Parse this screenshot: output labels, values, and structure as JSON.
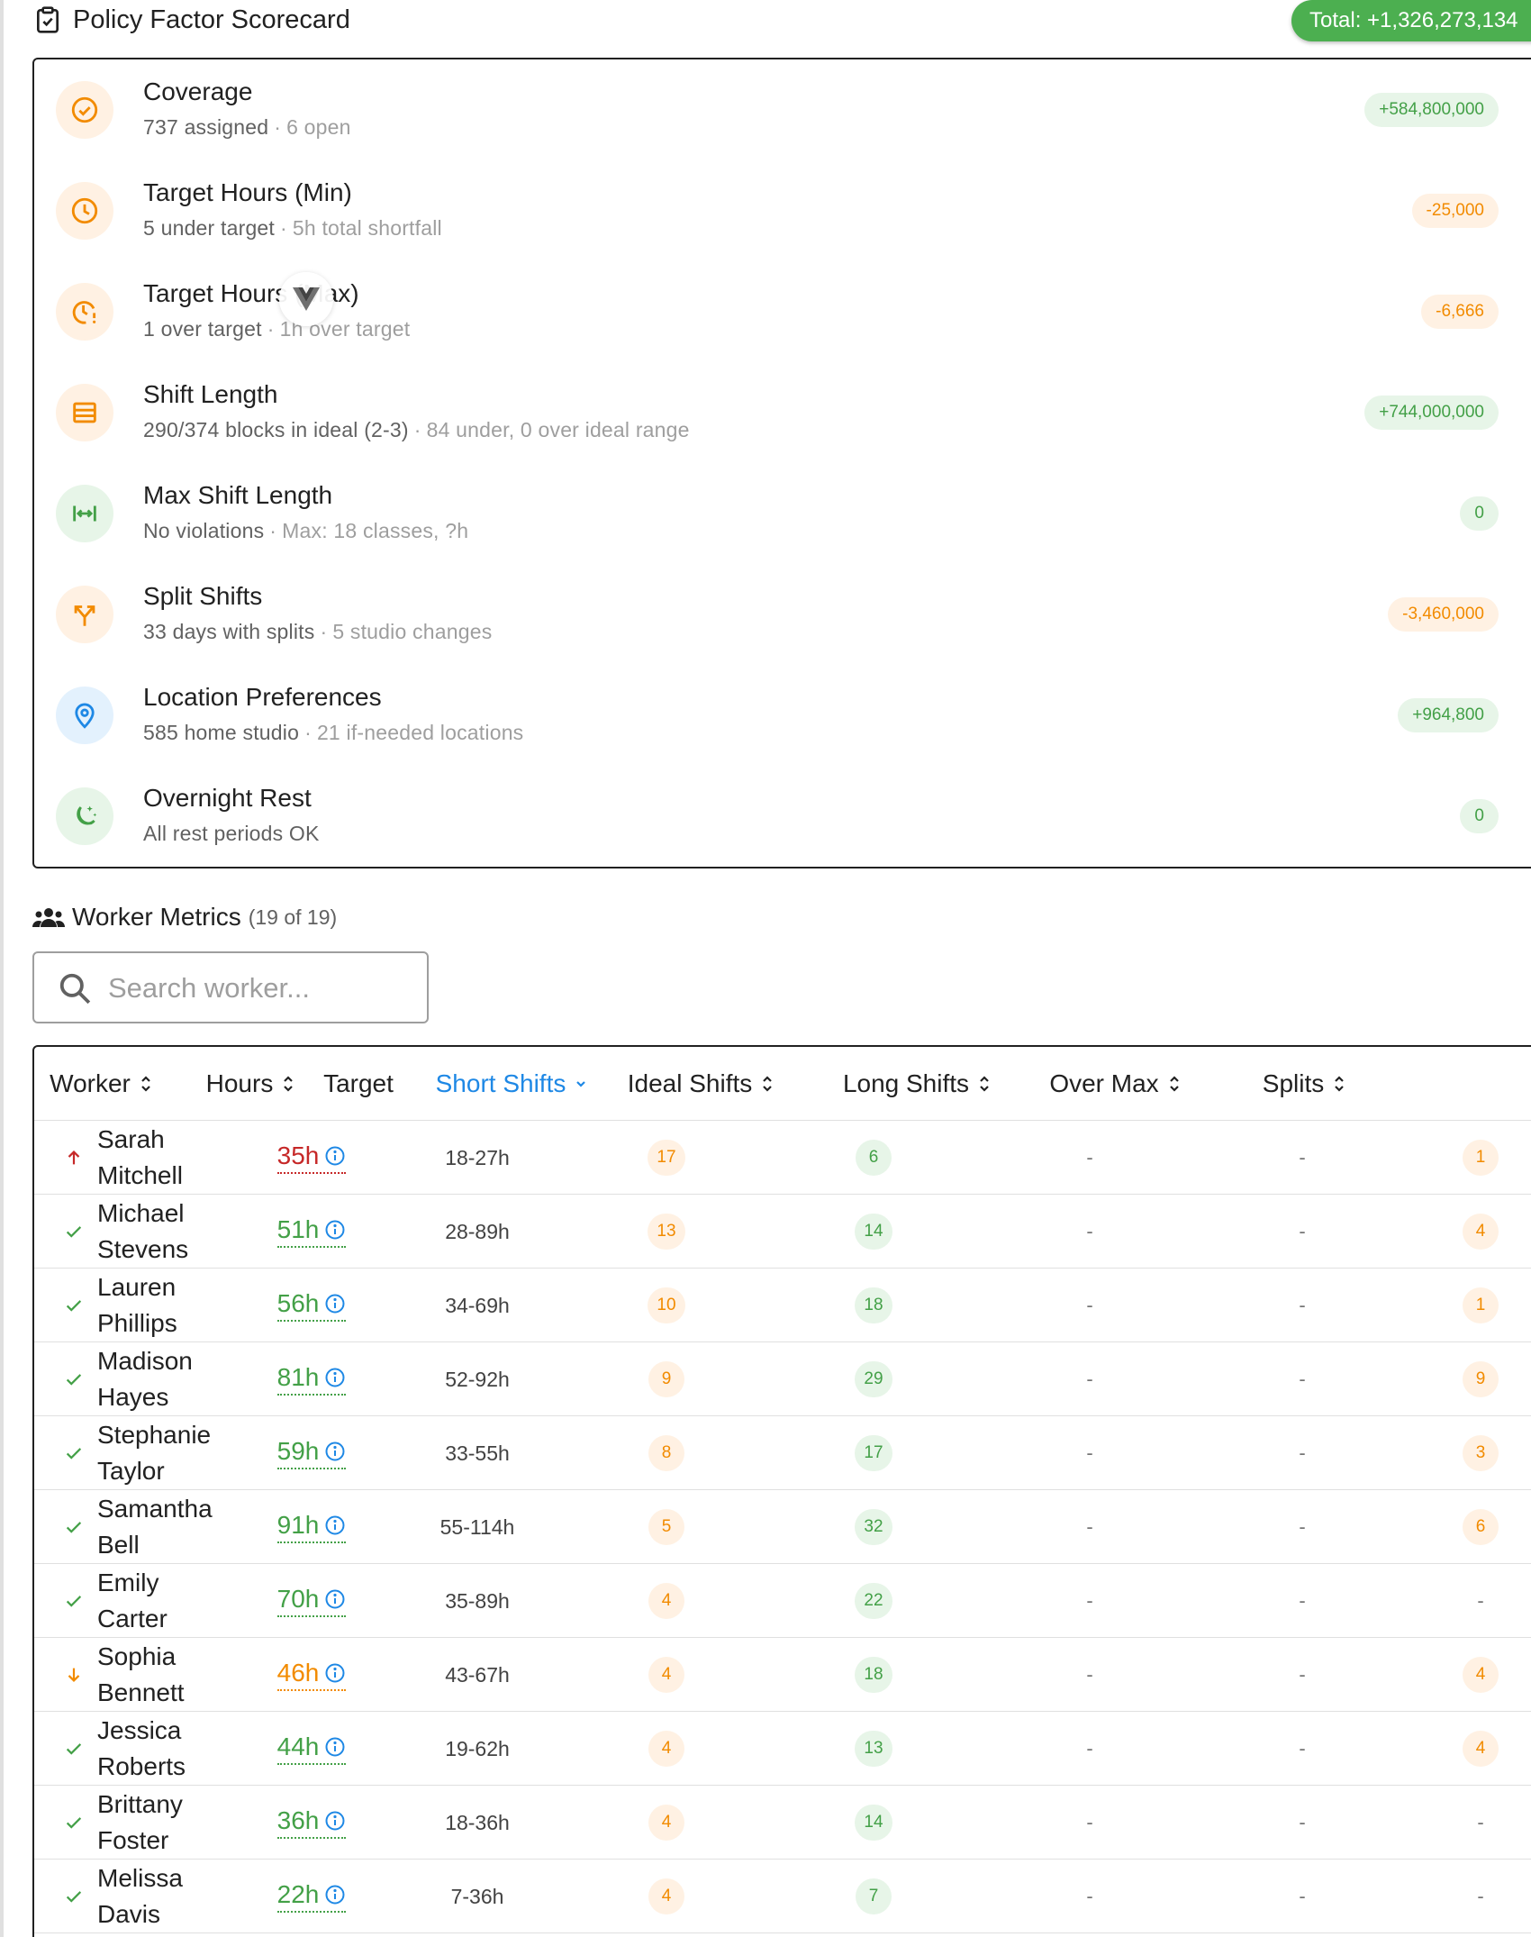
{
  "scorecard": {
    "title": "Policy Factor Scorecard",
    "total": "Total: +1,326,273,134",
    "factors": [
      {
        "name": "Coverage",
        "detail": "737 assigned",
        "extra": "6 open",
        "score": "+584,800,000",
        "tone": "pos",
        "icon": "check-circle-icon"
      },
      {
        "name": "Target Hours (Min)",
        "detail": "5 under target",
        "extra": "5h total shortfall",
        "score": "-25,000",
        "tone": "neg",
        "icon": "clock-icon"
      },
      {
        "name": "Target Hours (Max)",
        "detail": "1 over target",
        "extra": "1h over target",
        "score": "-6,666",
        "tone": "neg",
        "icon": "clock-alert-icon"
      },
      {
        "name": "Shift Length",
        "detail": "290/374 blocks in ideal (2-3)",
        "extra": "84 under, 0 over ideal range",
        "score": "+744,000,000",
        "tone": "pos",
        "icon": "list-icon"
      },
      {
        "name": "Max Shift Length",
        "detail": "No violations",
        "extra": "Max: 18 classes, ?h",
        "score": "0",
        "tone": "zero",
        "icon": "horizontal-arrows-icon"
      },
      {
        "name": "Split Shifts",
        "detail": "33 days with splits",
        "extra": "5 studio changes",
        "score": "-3,460,000",
        "tone": "neg",
        "icon": "split-icon"
      },
      {
        "name": "Location Preferences",
        "detail": "585 home studio",
        "extra": "21 if-needed locations",
        "score": "+964,800",
        "tone": "pos",
        "icon": "map-pin-icon"
      },
      {
        "name": "Overnight Rest",
        "detail": "All rest periods OK",
        "extra": "",
        "score": "0",
        "tone": "zero",
        "icon": "moon-icon"
      }
    ]
  },
  "workers": {
    "title": "Worker Metrics",
    "count": "(19 of 19)",
    "search_placeholder": "Search worker...",
    "columns": [
      "Worker",
      "Hours",
      "Target",
      "Short Shifts",
      "Ideal Shifts",
      "Long Shifts",
      "Over Max",
      "Splits"
    ],
    "rows": [
      {
        "status": "up",
        "name": "Sarah Mitchell",
        "hours": "35h",
        "hours_tone": "red",
        "target": "18-27h",
        "short": "17",
        "ideal": "6",
        "long": "-",
        "over": "-",
        "splits": "1"
      },
      {
        "status": "ok",
        "name": "Michael Stevens",
        "hours": "51h",
        "hours_tone": "green",
        "target": "28-89h",
        "short": "13",
        "ideal": "14",
        "long": "-",
        "over": "-",
        "splits": "4"
      },
      {
        "status": "ok",
        "name": "Lauren Phillips",
        "hours": "56h",
        "hours_tone": "green",
        "target": "34-69h",
        "short": "10",
        "ideal": "18",
        "long": "-",
        "over": "-",
        "splits": "1"
      },
      {
        "status": "ok",
        "name": "Madison Hayes",
        "hours": "81h",
        "hours_tone": "green",
        "target": "52-92h",
        "short": "9",
        "ideal": "29",
        "long": "-",
        "over": "-",
        "splits": "9"
      },
      {
        "status": "ok",
        "name": "Stephanie Taylor",
        "hours": "59h",
        "hours_tone": "green",
        "target": "33-55h",
        "short": "8",
        "ideal": "17",
        "long": "-",
        "over": "-",
        "splits": "3"
      },
      {
        "status": "ok",
        "name": "Samantha Bell",
        "hours": "91h",
        "hours_tone": "green",
        "target": "55-114h",
        "short": "5",
        "ideal": "32",
        "long": "-",
        "over": "-",
        "splits": "6"
      },
      {
        "status": "ok",
        "name": "Emily Carter",
        "hours": "70h",
        "hours_tone": "green",
        "target": "35-89h",
        "short": "4",
        "ideal": "22",
        "long": "-",
        "over": "-",
        "splits": "-"
      },
      {
        "status": "down",
        "name": "Sophia Bennett",
        "hours": "46h",
        "hours_tone": "orange",
        "target": "43-67h",
        "short": "4",
        "ideal": "18",
        "long": "-",
        "over": "-",
        "splits": "4"
      },
      {
        "status": "ok",
        "name": "Jessica Roberts",
        "hours": "44h",
        "hours_tone": "green",
        "target": "19-62h",
        "short": "4",
        "ideal": "13",
        "long": "-",
        "over": "-",
        "splits": "4"
      },
      {
        "status": "ok",
        "name": "Brittany Foster",
        "hours": "36h",
        "hours_tone": "green",
        "target": "18-36h",
        "short": "4",
        "ideal": "14",
        "long": "-",
        "over": "-",
        "splits": "-"
      },
      {
        "status": "ok",
        "name": "Melissa Davis",
        "hours": "22h",
        "hours_tone": "green",
        "target": "7-36h",
        "short": "4",
        "ideal": "7",
        "long": "-",
        "over": "-",
        "splits": "-"
      }
    ]
  },
  "colors": {
    "green": "#43a047",
    "orange": "#f28b00",
    "red": "#c62828",
    "blue": "#1e88e5"
  }
}
